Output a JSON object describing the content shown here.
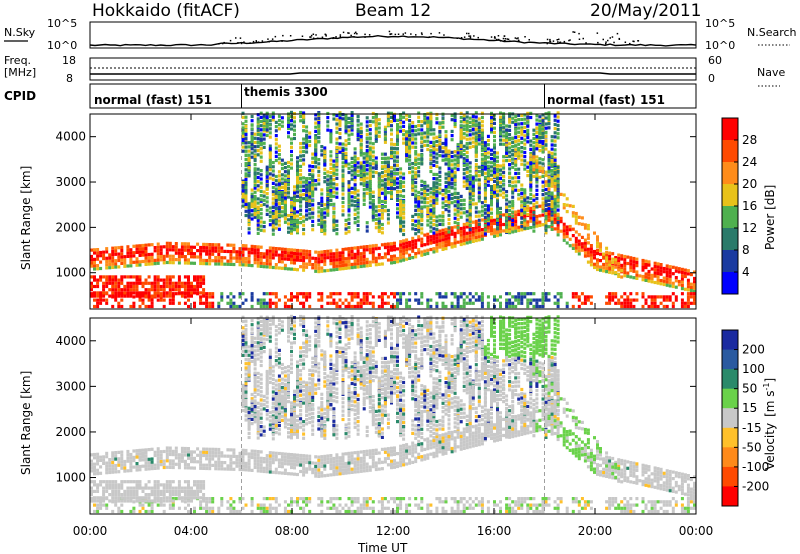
{
  "header": {
    "station": "Hokkaido (fitACF)",
    "beam": "Beam 12",
    "date": "20/May/2011"
  },
  "noise_panel": {
    "left_label": "N.Sky",
    "right_label": "N.Search",
    "left_ticks": [
      "10^5",
      "10^0"
    ],
    "right_ticks": [
      "10^5",
      "10^0"
    ]
  },
  "freq_panel": {
    "left_label_1": "Freq.",
    "left_label_2": "[MHz]",
    "right_label": "Nave",
    "left_ticks": [
      "18",
      "8"
    ],
    "right_ticks": [
      "60",
      "0"
    ]
  },
  "cpid_panel": {
    "label": "CPID",
    "segments": [
      {
        "text": "normal (fast) 151",
        "start_hour": 0,
        "end_hour": 6
      },
      {
        "text": "themis 3300",
        "start_hour": 6,
        "end_hour": 18
      },
      {
        "text": "normal (fast) 151",
        "start_hour": 18,
        "end_hour": 24
      }
    ]
  },
  "power_colorbar": {
    "title": "Power [dB]",
    "labels": [
      "28",
      "24",
      "20",
      "16",
      "12",
      "8",
      "4"
    ],
    "colors": [
      "#ff0000",
      "#ff4a00",
      "#ff8c1a",
      "#e8c21a",
      "#4fb04f",
      "#2a7a6a",
      "#1a3aa0",
      "#0000ff"
    ]
  },
  "velocity_colorbar": {
    "title_1": "Velocity",
    "title_2": "[m s",
    "title_sup": "-1",
    "title_3": "]",
    "labels": [
      "200",
      "100",
      "50",
      "15",
      "-15",
      "-50",
      "-100",
      "-200"
    ],
    "colors": [
      "#1a2aa0",
      "#2a5aa0",
      "#2a8a6a",
      "#6ad24a",
      "#c8c8c8",
      "#ffc02a",
      "#ff8a1a",
      "#ff4a00",
      "#ff0000"
    ]
  },
  "chart_data": [
    {
      "type": "heatmap",
      "title": "Power",
      "ylabel": "Slant Range [km]",
      "xlabel": "Time UT",
      "x_ticks": [
        "00:00",
        "04:00",
        "08:00",
        "12:00",
        "16:00",
        "20:00",
        "00:00"
      ],
      "y_ticks": [
        "1000",
        "2000",
        "3000",
        "4000"
      ],
      "ylim": [
        200,
        4500
      ],
      "xlim_hours": [
        0,
        24
      ],
      "dominant_band": [
        {
          "hour": 0,
          "range_km": 1300
        },
        {
          "hour": 3,
          "range_km": 1450
        },
        {
          "hour": 6,
          "range_km": 1400
        },
        {
          "hour": 9,
          "range_km": 1250
        },
        {
          "hour": 12,
          "range_km": 1450
        },
        {
          "hour": 15,
          "range_km": 1900
        },
        {
          "hour": 18,
          "range_km": 2300
        },
        {
          "hour": 20,
          "range_km": 1300
        },
        {
          "hour": 24,
          "range_km": 800
        }
      ]
    },
    {
      "type": "heatmap",
      "title": "Velocity",
      "ylabel": "Slant Range [km]",
      "xlabel": "Time UT",
      "x_ticks": [
        "00:00",
        "04:00",
        "08:00",
        "12:00",
        "16:00",
        "20:00",
        "00:00"
      ],
      "y_ticks": [
        "1000",
        "2000",
        "3000",
        "4000"
      ],
      "ylim": [
        200,
        4500
      ],
      "xlim_hours": [
        0,
        24
      ]
    }
  ]
}
